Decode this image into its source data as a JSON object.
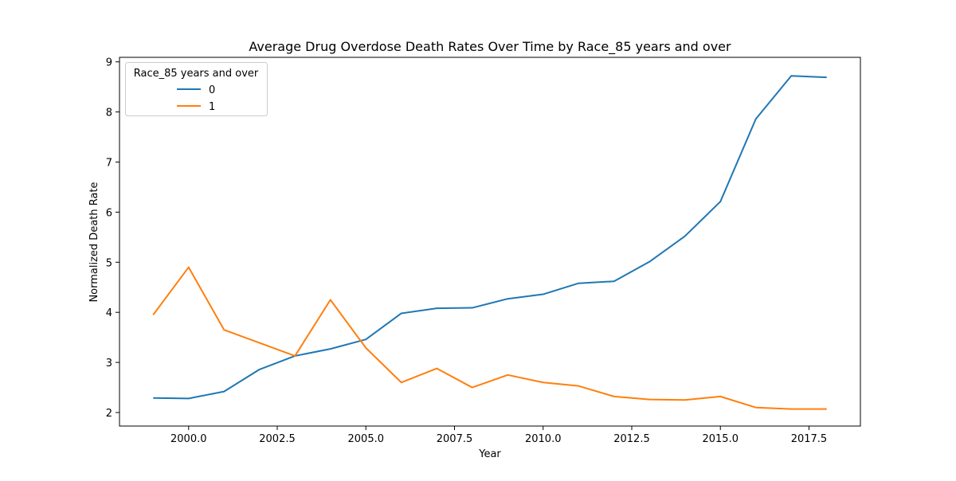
{
  "chart_data": {
    "type": "line",
    "title": "Average Drug Overdose Death Rates Over Time by Race_85 years and over",
    "xlabel": "Year",
    "ylabel": "Normalized Death Rate",
    "xlim": [
      1998.05,
      2018.95
    ],
    "ylim": [
      1.73,
      9.09
    ],
    "x_ticks": [
      2000.0,
      2002.5,
      2005.0,
      2007.5,
      2010.0,
      2012.5,
      2015.0,
      2017.5
    ],
    "x_tick_labels": [
      "2000.0",
      "2002.5",
      "2005.0",
      "2007.5",
      "2010.0",
      "2012.5",
      "2015.0",
      "2017.5"
    ],
    "y_ticks": [
      2,
      3,
      4,
      5,
      6,
      7,
      8,
      9
    ],
    "y_tick_labels": [
      "2",
      "3",
      "4",
      "5",
      "6",
      "7",
      "8",
      "9"
    ],
    "grid": false,
    "legend": {
      "title": "Race_85 years and over",
      "placement": "top-left"
    },
    "x": [
      1999,
      2000,
      2001,
      2002,
      2003,
      2004,
      2005,
      2006,
      2007,
      2008,
      2009,
      2010,
      2011,
      2012,
      2013,
      2014,
      2015,
      2016,
      2017,
      2018
    ],
    "series": [
      {
        "name": "0",
        "color": "#1f77b4",
        "values": [
          2.29,
          2.28,
          2.42,
          2.86,
          3.13,
          3.27,
          3.46,
          3.98,
          4.08,
          4.09,
          4.27,
          4.36,
          4.58,
          4.62,
          5.01,
          5.52,
          6.21,
          7.86,
          8.72,
          8.69
        ]
      },
      {
        "name": "1",
        "color": "#ff7f0e",
        "values": [
          3.95,
          4.9,
          3.65,
          3.39,
          3.13,
          4.25,
          3.29,
          2.6,
          2.88,
          2.5,
          2.75,
          2.6,
          2.53,
          2.32,
          2.26,
          2.25,
          2.32,
          2.1,
          2.07,
          2.07
        ]
      }
    ]
  }
}
